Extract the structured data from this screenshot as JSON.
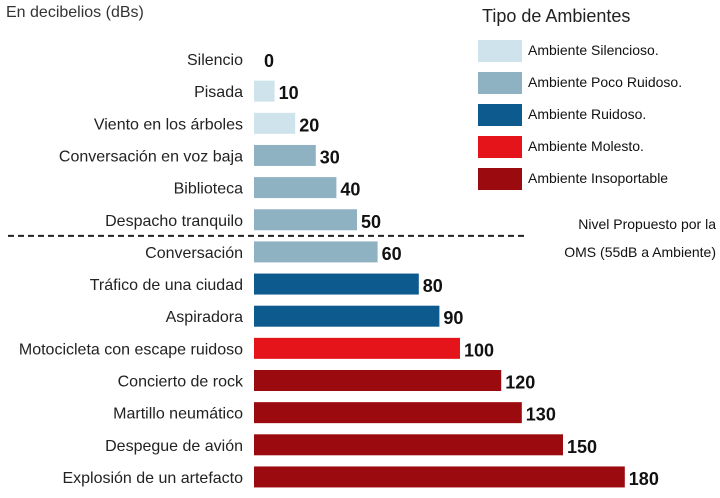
{
  "header": {
    "unit_label": "En decibelios (dBs)"
  },
  "legend": {
    "title": "Tipo de Ambientes",
    "items": [
      {
        "label": "Ambiente Silencioso.",
        "color": "#cfe3ec"
      },
      {
        "label": "Ambiente Poco Ruidoso.",
        "color": "#8eb2c2"
      },
      {
        "label": "Ambiente Ruidoso.",
        "color": "#0d5a8f"
      },
      {
        "label": "Ambiente Molesto.",
        "color": "#e5141b"
      },
      {
        "label": "Ambiente Insoportable",
        "color": "#9b0a0e"
      }
    ]
  },
  "threshold": {
    "line1": "Nivel Propuesto por la",
    "line2": "OMS (55dB a Ambiente)",
    "value": 55
  },
  "chart_data": {
    "type": "bar",
    "orientation": "horizontal",
    "categories": [
      "Silencio",
      "Pisada",
      "Viento en los árboles",
      "Conversación en voz baja",
      "Biblioteca",
      "Despacho tranquilo",
      "Conversación",
      "Tráfico de una ciudad",
      "Aspiradora",
      "Motocicleta con escape ruidoso",
      "Concierto de rock",
      "Martillo neumático",
      "Despegue de avión",
      "Explosión de un artefacto"
    ],
    "values": [
      0,
      10,
      20,
      30,
      40,
      50,
      60,
      80,
      90,
      100,
      120,
      130,
      150,
      180
    ],
    "value_labels": [
      "0",
      "10",
      "20",
      "30",
      "40",
      "50",
      "60",
      "80",
      "90",
      "100",
      "120",
      "130",
      "150",
      "180"
    ],
    "category_type": [
      0,
      0,
      0,
      1,
      1,
      1,
      1,
      2,
      2,
      3,
      4,
      4,
      4,
      4
    ],
    "xlim": [
      0,
      180
    ],
    "grid": false,
    "legend_position": "top-right"
  }
}
